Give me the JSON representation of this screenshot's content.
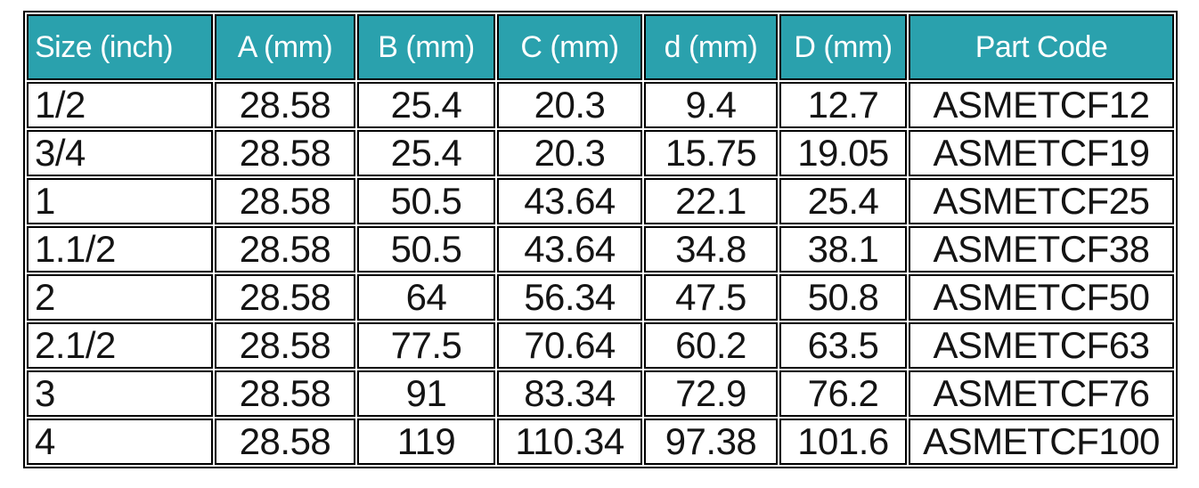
{
  "chart_data": {
    "type": "table",
    "title": "",
    "columns": [
      "Size (inch)",
      "A (mm)",
      "B (mm)",
      "C (mm)",
      "d (mm)",
      "D (mm)",
      "Part Code"
    ],
    "rows": [
      [
        "1/2",
        "28.58",
        "25.4",
        "20.3",
        "9.4",
        "12.7",
        "ASMETCF12"
      ],
      [
        "3/4",
        "28.58",
        "25.4",
        "20.3",
        "15.75",
        "19.05",
        "ASMETCF19"
      ],
      [
        "1",
        "28.58",
        "50.5",
        "43.64",
        "22.1",
        "25.4",
        "ASMETCF25"
      ],
      [
        "1.1/2",
        "28.58",
        "50.5",
        "43.64",
        "34.8",
        "38.1",
        "ASMETCF38"
      ],
      [
        "2",
        "28.58",
        "64",
        "56.34",
        "47.5",
        "50.8",
        "ASMETCF50"
      ],
      [
        "2.1/2",
        "28.58",
        "77.5",
        "70.64",
        "60.2",
        "63.5",
        "ASMETCF63"
      ],
      [
        "3",
        "28.58",
        "91",
        "83.34",
        "72.9",
        "76.2",
        "ASMETCF76"
      ],
      [
        "4",
        "28.58",
        "119",
        "110.34",
        "97.38",
        "101.6",
        "ASMETCF100"
      ]
    ]
  },
  "colors": {
    "header_bg": "#2aa1ad",
    "header_text": "#ffffff",
    "row_bg": "#ffffff",
    "text": "#141414",
    "border": "#000000"
  }
}
